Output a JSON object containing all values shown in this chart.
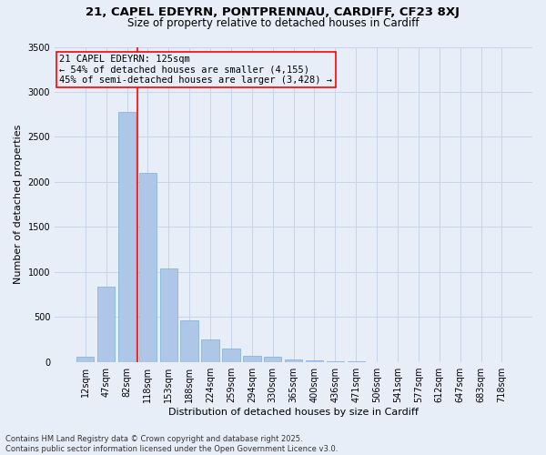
{
  "title_line1": "21, CAPEL EDEYRN, PONTPRENNAU, CARDIFF, CF23 8XJ",
  "title_line2": "Size of property relative to detached houses in Cardiff",
  "xlabel": "Distribution of detached houses by size in Cardiff",
  "ylabel": "Number of detached properties",
  "categories": [
    "12sqm",
    "47sqm",
    "82sqm",
    "118sqm",
    "153sqm",
    "188sqm",
    "224sqm",
    "259sqm",
    "294sqm",
    "330sqm",
    "365sqm",
    "400sqm",
    "436sqm",
    "471sqm",
    "506sqm",
    "541sqm",
    "577sqm",
    "612sqm",
    "647sqm",
    "683sqm",
    "718sqm"
  ],
  "values": [
    55,
    840,
    2780,
    2100,
    1040,
    460,
    250,
    150,
    65,
    60,
    30,
    20,
    10,
    5,
    0,
    0,
    0,
    0,
    0,
    0,
    0
  ],
  "bar_color": "#aec6e8",
  "bar_edgecolor": "#7bafd4",
  "grid_color": "#c8d4e8",
  "background_color": "#e8eef8",
  "vline_x_index": 2.5,
  "vline_color": "red",
  "annotation_line1": "21 CAPEL EDEYRN: 125sqm",
  "annotation_line2": "← 54% of detached houses are smaller (4,155)",
  "annotation_line3": "45% of semi-detached houses are larger (3,428) →",
  "annotation_box_edgecolor": "red",
  "ylim": [
    0,
    3500
  ],
  "yticks": [
    0,
    500,
    1000,
    1500,
    2000,
    2500,
    3000,
    3500
  ],
  "footer_line1": "Contains HM Land Registry data © Crown copyright and database right 2025.",
  "footer_line2": "Contains public sector information licensed under the Open Government Licence v3.0.",
  "title_fontsize": 9.5,
  "subtitle_fontsize": 8.5,
  "ylabel_fontsize": 8,
  "xlabel_fontsize": 8,
  "tick_fontsize": 7,
  "annotation_fontsize": 7.5,
  "footer_fontsize": 6
}
